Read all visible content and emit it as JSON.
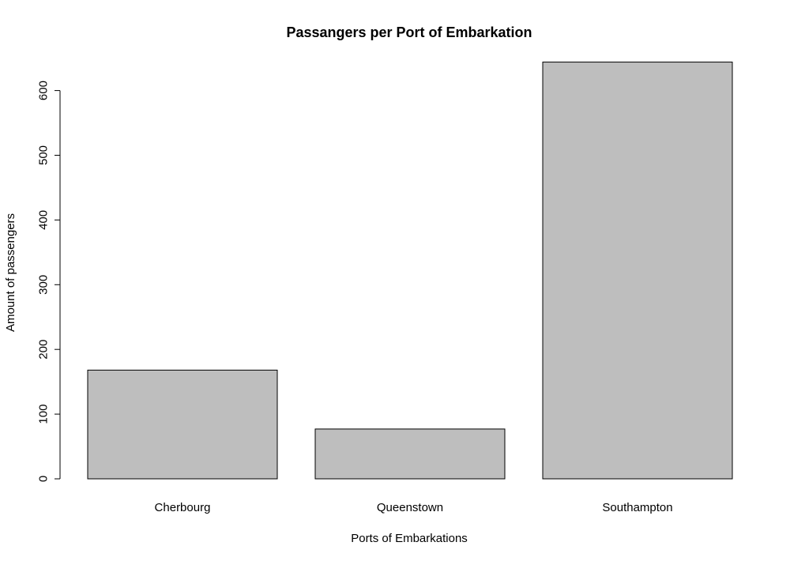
{
  "chart_data": {
    "type": "bar",
    "title": "Passangers per Port of Embarkation",
    "xlabel": "Ports of Embarkations",
    "ylabel": "Amount of passengers",
    "categories": [
      "Cherbourg",
      "Queenstown",
      "Southampton"
    ],
    "values": [
      168,
      77,
      644
    ],
    "ylim": [
      0,
      600
    ],
    "yticks": [
      0,
      100,
      200,
      300,
      400,
      500,
      600
    ],
    "bar_color": "#bebebe",
    "grid": false
  }
}
